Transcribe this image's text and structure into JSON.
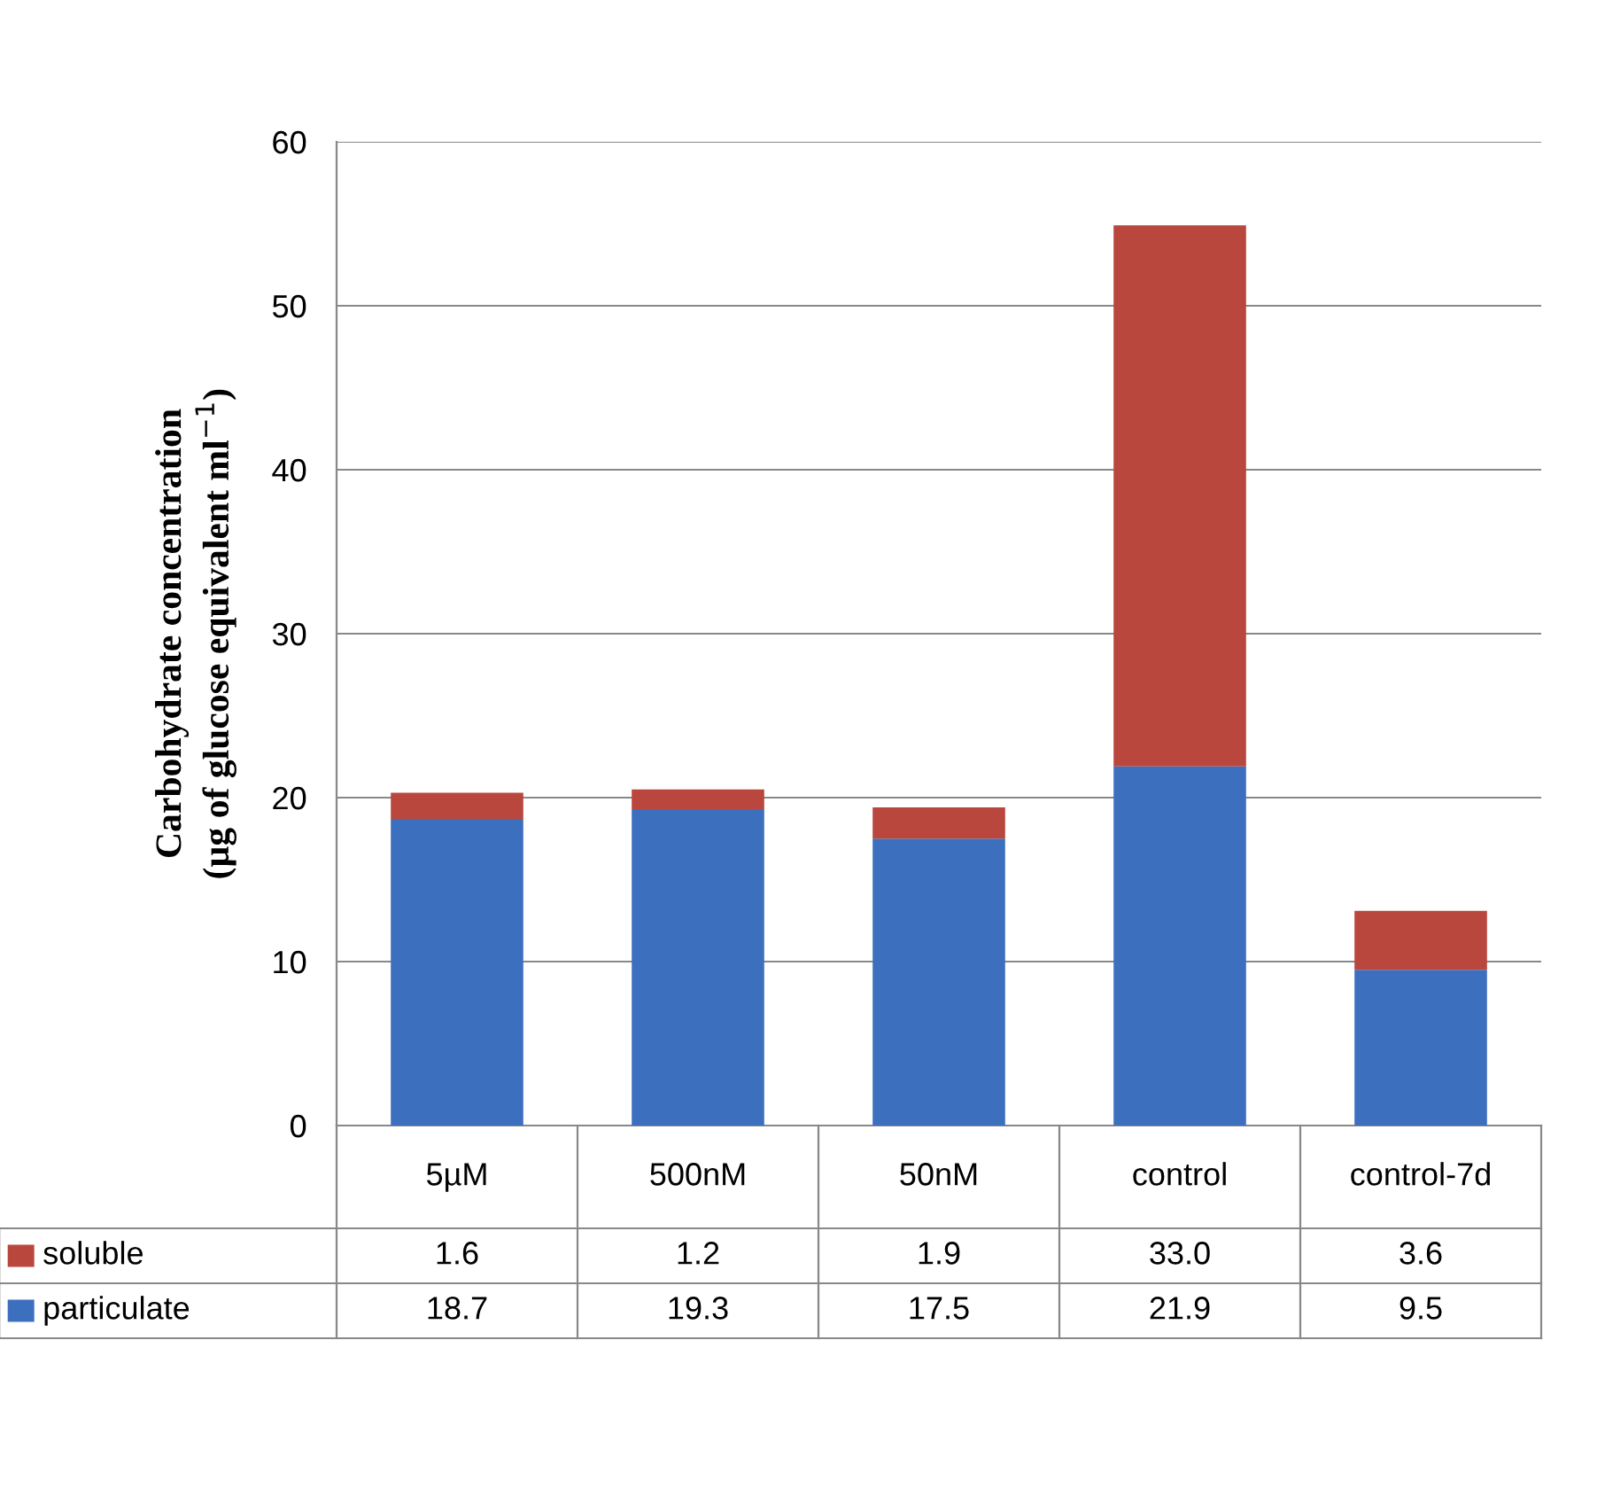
{
  "chart_data": {
    "type": "bar",
    "stacked": true,
    "ylabel": "Carbohydrate concentration\n(µg of glucose equivalent ml$^{−1}$)",
    "categories": [
      "5µM",
      "500nM",
      "50nM",
      "control",
      "control-7d"
    ],
    "series": [
      {
        "name": "particulate",
        "color": "#3d6fbf",
        "values": [
          18.7,
          19.3,
          17.5,
          21.9,
          9.5
        ],
        "value_labels": [
          "18.7",
          "19.3",
          "17.5",
          "21.9",
          "9.5"
        ]
      },
      {
        "name": "soluble",
        "color": "#b9473d",
        "values": [
          1.6,
          1.2,
          1.9,
          33.0,
          3.6
        ],
        "value_labels": [
          "1.6",
          "1.2",
          "1.9",
          "33.0",
          "3.6"
        ]
      }
    ],
    "ylim": [
      0,
      60
    ],
    "yticks": [
      0,
      10,
      20,
      30,
      40,
      50,
      60
    ],
    "grid": "y",
    "legend": "bottom"
  }
}
